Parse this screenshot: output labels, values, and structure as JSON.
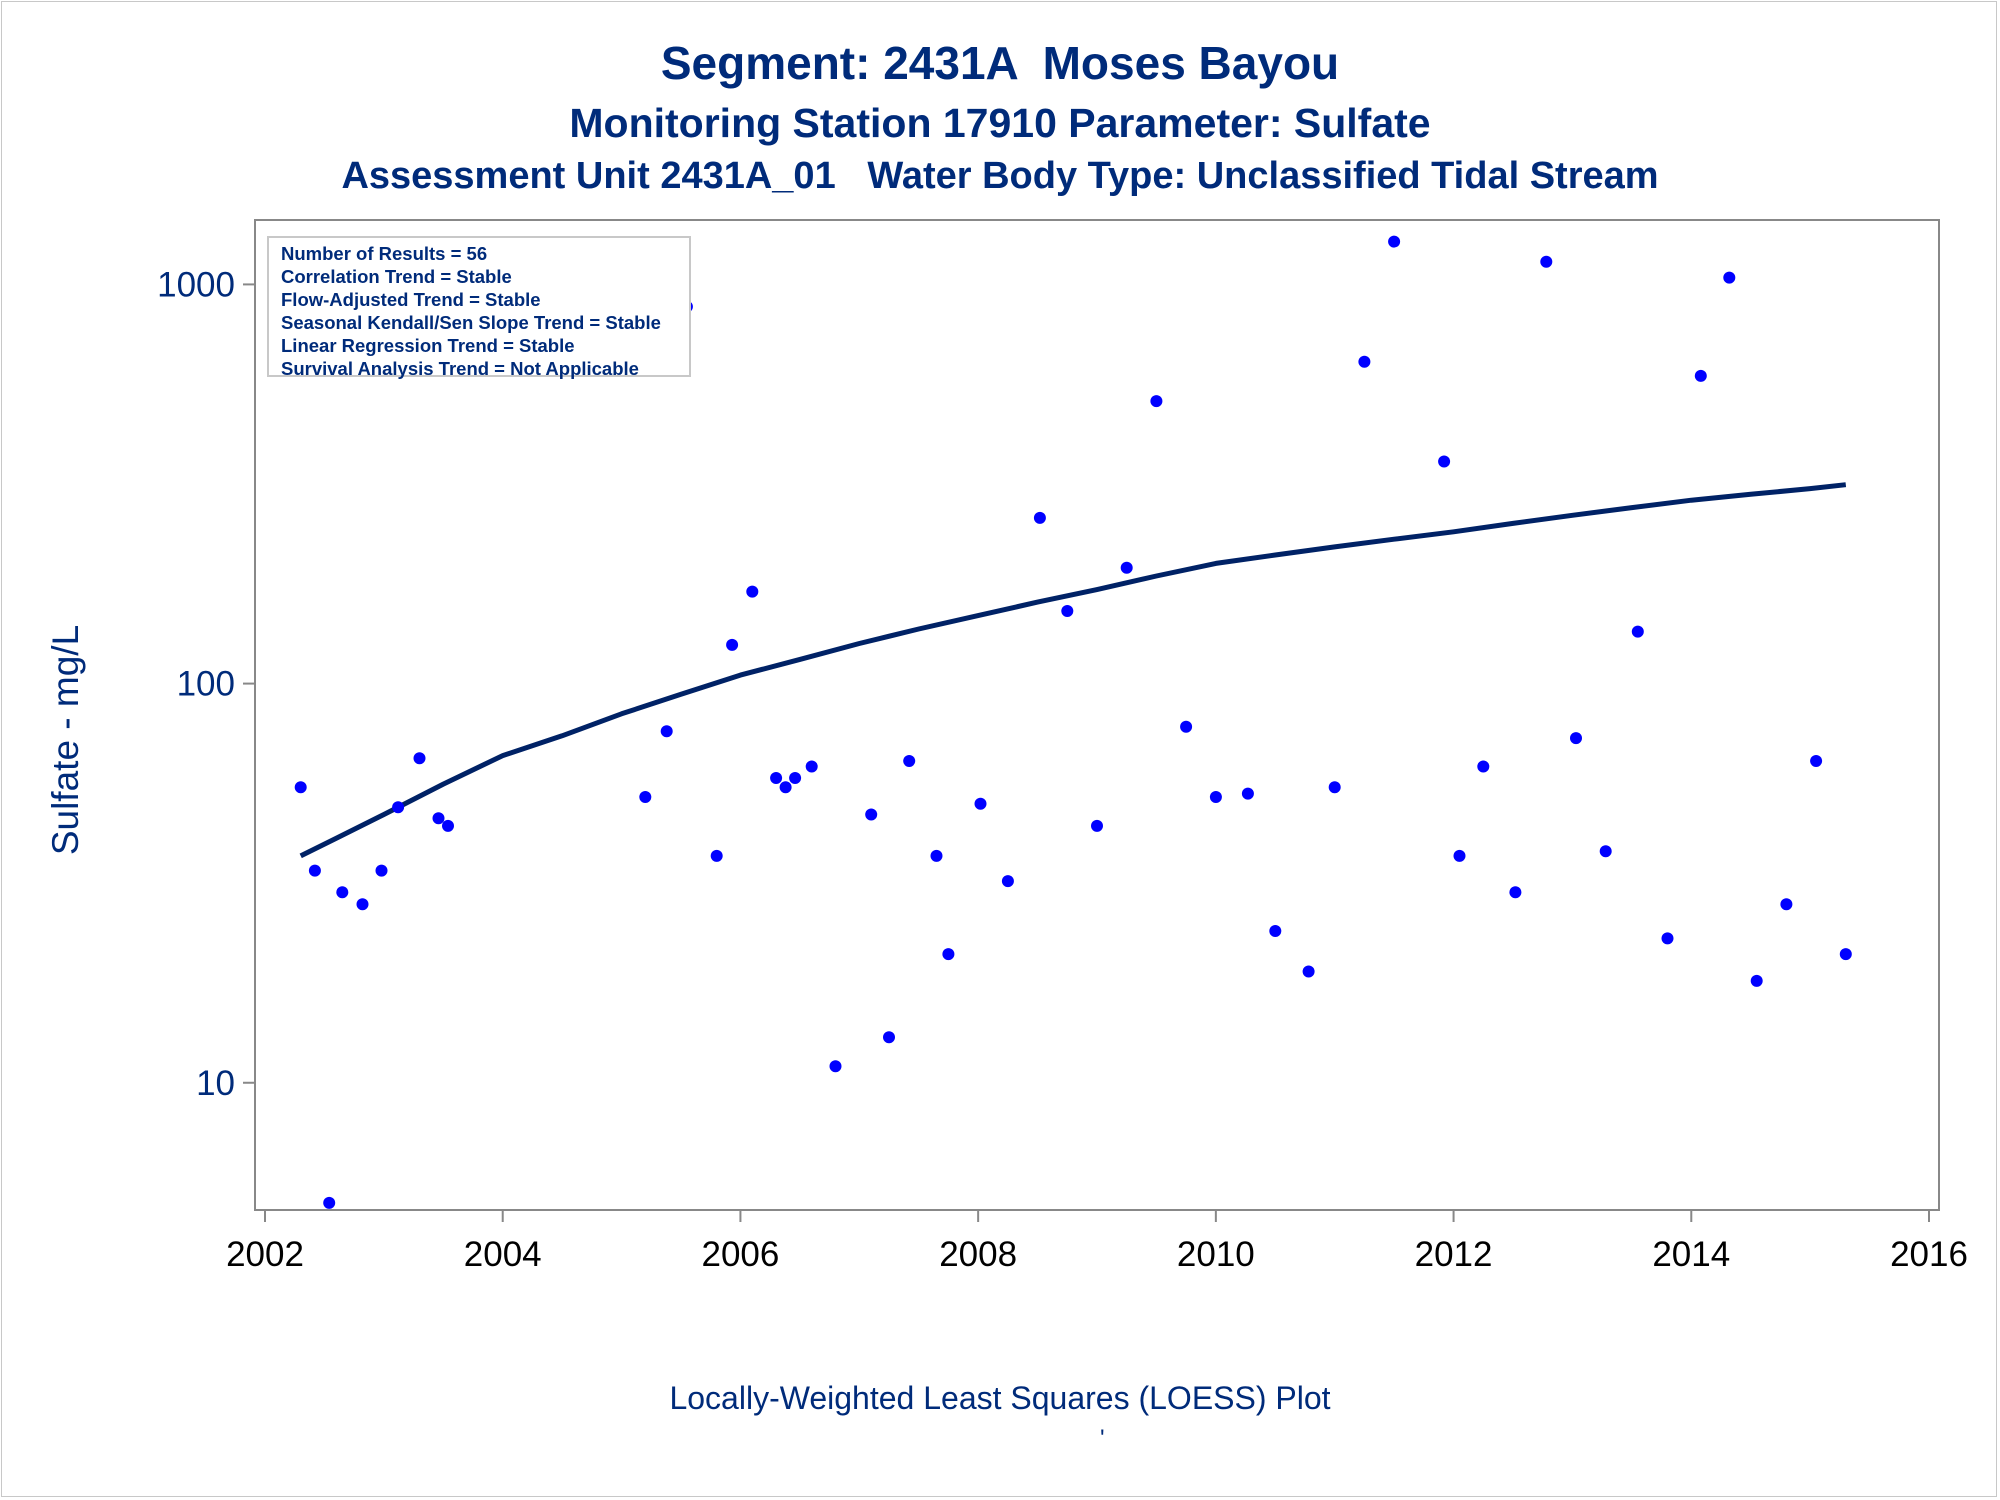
{
  "titles": {
    "line1": "Segment: 2431A  Moses Bayou",
    "line2": "Monitoring Station 17910 Parameter: Sulfate",
    "line3": "Assessment Unit 2431A_01   Water Body Type: Unclassified Tidal Stream"
  },
  "stats": [
    "Number of Results = 56",
    "Correlation Trend = Stable",
    "Flow-Adjusted Trend = Stable",
    "Seasonal Kendall/Sen Slope Trend = Stable",
    "Linear Regression Trend = Stable",
    "Survival Analysis Trend = Not Applicable"
  ],
  "footnote": "Locally-Weighted Least Squares (LOESS) Plot",
  "footmark": "'",
  "colors": {
    "text": "#002b7a",
    "points": "#0000ff",
    "loess": "#002266",
    "axis": "#888888"
  },
  "chart_data": {
    "type": "scatter",
    "ylabel": "Sulfate - mg/L",
    "xlabel": "",
    "yscale": "log",
    "xlim": [
      2002,
      2016
    ],
    "ylim": [
      4.8,
      1450
    ],
    "xticks": [
      2002,
      2004,
      2006,
      2008,
      2010,
      2012,
      2014,
      2016
    ],
    "yticks": [
      10,
      100,
      1000
    ],
    "grid": false,
    "series": [
      {
        "kind": "points",
        "points": [
          [
            2002.3,
            55
          ],
          [
            2002.42,
            34
          ],
          [
            2002.54,
            5
          ],
          [
            2002.65,
            30
          ],
          [
            2002.82,
            28
          ],
          [
            2002.98,
            34
          ],
          [
            2003.12,
            49
          ],
          [
            2003.3,
            65
          ],
          [
            2003.46,
            46
          ],
          [
            2003.54,
            44
          ],
          [
            2005.2,
            52
          ],
          [
            2005.38,
            76
          ],
          [
            2005.55,
            880
          ],
          [
            2005.8,
            37
          ],
          [
            2005.93,
            125
          ],
          [
            2006.1,
            170
          ],
          [
            2006.3,
            58
          ],
          [
            2006.38,
            55
          ],
          [
            2006.46,
            58
          ],
          [
            2006.6,
            62
          ],
          [
            2006.8,
            11
          ],
          [
            2007.1,
            47
          ],
          [
            2007.25,
            13
          ],
          [
            2007.42,
            64
          ],
          [
            2007.65,
            37
          ],
          [
            2007.75,
            21
          ],
          [
            2008.02,
            50
          ],
          [
            2008.25,
            32
          ],
          [
            2008.52,
            260
          ],
          [
            2008.75,
            152
          ],
          [
            2009.0,
            44
          ],
          [
            2009.25,
            195
          ],
          [
            2009.5,
            510
          ],
          [
            2009.75,
            78
          ],
          [
            2010.0,
            52
          ],
          [
            2010.27,
            53
          ],
          [
            2010.5,
            24
          ],
          [
            2010.78,
            19
          ],
          [
            2011.0,
            55
          ],
          [
            2011.25,
            640
          ],
          [
            2011.5,
            1280
          ],
          [
            2011.92,
            360
          ],
          [
            2012.05,
            37
          ],
          [
            2012.25,
            62
          ],
          [
            2012.52,
            30
          ],
          [
            2012.78,
            1140
          ],
          [
            2013.03,
            73
          ],
          [
            2013.28,
            38
          ],
          [
            2013.55,
            135
          ],
          [
            2013.8,
            23
          ],
          [
            2014.08,
            590
          ],
          [
            2014.32,
            1040
          ],
          [
            2014.55,
            18
          ],
          [
            2014.8,
            28
          ],
          [
            2015.05,
            64
          ],
          [
            2015.3,
            21
          ]
        ]
      },
      {
        "kind": "loess",
        "points": [
          [
            2002.3,
            37
          ],
          [
            2002.6,
            41
          ],
          [
            2003.0,
            47
          ],
          [
            2003.5,
            56
          ],
          [
            2004.0,
            66
          ],
          [
            2004.5,
            74
          ],
          [
            2005.0,
            84
          ],
          [
            2005.5,
            94
          ],
          [
            2006.0,
            105
          ],
          [
            2006.5,
            115
          ],
          [
            2007.0,
            126
          ],
          [
            2007.5,
            137
          ],
          [
            2008.0,
            148
          ],
          [
            2008.5,
            160
          ],
          [
            2009.0,
            172
          ],
          [
            2009.5,
            186
          ],
          [
            2010.0,
            200
          ],
          [
            2010.5,
            210
          ],
          [
            2011.0,
            220
          ],
          [
            2011.5,
            230
          ],
          [
            2012.0,
            240
          ],
          [
            2012.5,
            252
          ],
          [
            2013.0,
            264
          ],
          [
            2013.5,
            276
          ],
          [
            2014.0,
            288
          ],
          [
            2014.5,
            298
          ],
          [
            2015.0,
            308
          ],
          [
            2015.3,
            315
          ]
        ]
      }
    ]
  }
}
